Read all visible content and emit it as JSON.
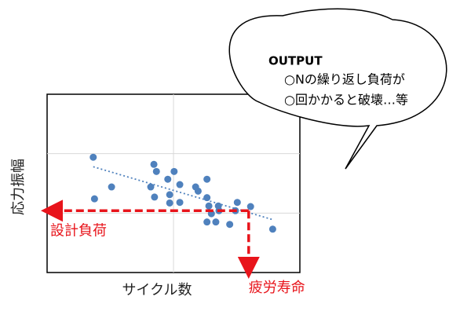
{
  "chart_data": {
    "type": "scatter",
    "x_label": "サイクル数",
    "y_label": "応力振幅",
    "xlim": [
      0,
      4
    ],
    "ylim": [
      0,
      3
    ],
    "xticks": [
      2
    ],
    "yticks": [
      1,
      2
    ],
    "grid": true,
    "series": [
      {
        "color": "#4f81bd",
        "x": [
          0.73,
          0.75,
          1.02,
          1.69,
          1.73,
          1.7,
          1.64,
          1.91,
          1.94,
          1.94,
          2.01,
          2.1,
          2.1,
          2.35,
          2.39,
          2.53,
          2.53,
          2.56,
          2.6,
          2.71,
          2.72,
          2.53,
          2.67,
          2.89,
          2.98,
          3.01,
          3.22,
          3.57
        ],
        "values": [
          1.94,
          1.24,
          1.44,
          1.82,
          1.7,
          1.27,
          1.44,
          1.57,
          1.31,
          1.17,
          1.7,
          1.48,
          1.18,
          1.44,
          1.37,
          1.57,
          1.26,
          1.12,
          0.99,
          1.12,
          1.04,
          0.85,
          0.85,
          0.81,
          1.04,
          1.18,
          1.11,
          0.73
        ]
      }
    ],
    "trendline": {
      "x": [
        0.73,
        3.57
      ],
      "values": [
        1.78,
        0.89
      ]
    },
    "design_load": {
      "label": "設計負荷",
      "value": 1.04,
      "color": "#e8141b"
    },
    "fatigue_life": {
      "label": "疲労寿命",
      "value": 3.19,
      "color": "#e8141b"
    }
  },
  "callout": {
    "title": "OUTPUT",
    "lines": [
      "○Nの繰り返し負荷が",
      "○回かかると破壊…等"
    ]
  }
}
